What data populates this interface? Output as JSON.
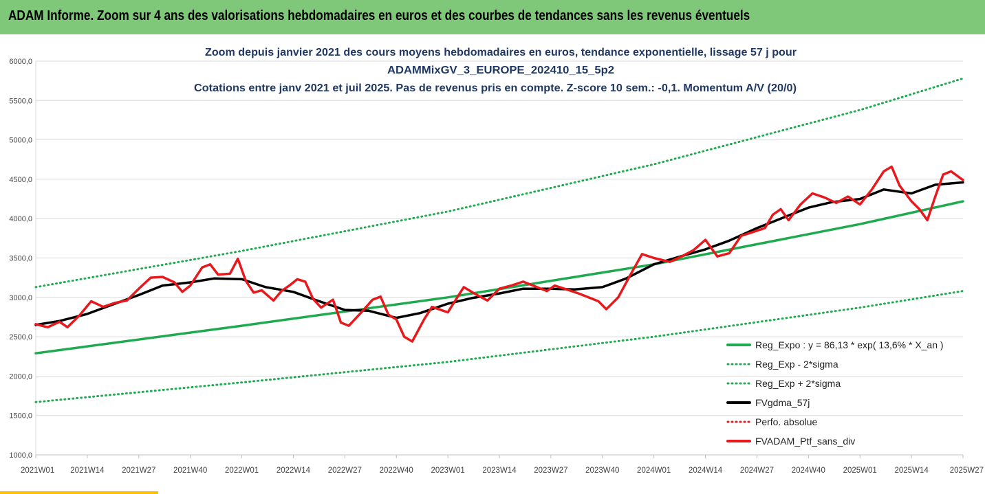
{
  "banner": {
    "title": "ADAM Informe. Zoom sur 4 ans des valorisations hebdomadaires en euros et des courbes de tendances sans les revenus éventuels"
  },
  "chart_data": {
    "type": "line",
    "title_lines": [
      "Zoom depuis janvier 2021 des cours moyens hebdomadaires  en euros, tendance exponentielle, lissage 57 j pour",
      "ADAMMixGV_3_EUROPE_202410_15_5p2",
      "Cotations entre janv 2021 et juil 2025. Pas de revenus pris en compte. Z-score 10 sem.: -0,1. Momentum A/V (20/0)"
    ],
    "ylim": [
      1000,
      6000
    ],
    "y_ticks": [
      "1000,0",
      "1500,0",
      "2000,0",
      "2500,0",
      "3000,0",
      "3500,0",
      "4000,0",
      "4500,0",
      "5000,0",
      "5500,0",
      "6000,0"
    ],
    "x_week_range": [
      0,
      234
    ],
    "x_ticks": [
      {
        "label": "2021W01",
        "week": 0
      },
      {
        "label": "2021W14",
        "week": 13
      },
      {
        "label": "2021W27",
        "week": 26
      },
      {
        "label": "2021W40",
        "week": 39
      },
      {
        "label": "2022W01",
        "week": 52
      },
      {
        "label": "2022W14",
        "week": 65
      },
      {
        "label": "2022W27",
        "week": 78
      },
      {
        "label": "2022W40",
        "week": 91
      },
      {
        "label": "2023W01",
        "week": 104
      },
      {
        "label": "2023W14",
        "week": 117
      },
      {
        "label": "2023W27",
        "week": 130
      },
      {
        "label": "2023W40",
        "week": 143
      },
      {
        "label": "2024W01",
        "week": 156
      },
      {
        "label": "2024W14",
        "week": 169
      },
      {
        "label": "2024W27",
        "week": 182
      },
      {
        "label": "2024W40",
        "week": 195
      },
      {
        "label": "2025W01",
        "week": 208
      },
      {
        "label": "2025W14",
        "week": 221
      },
      {
        "label": "2025W27",
        "week": 234
      }
    ],
    "grid": "horizontal",
    "legend_position": "bottom-right",
    "series": [
      {
        "name": "Reg_Expo : y = 86,13 * exp( 13,6% *  X_an )",
        "color": "#1faa4f",
        "style": "solid",
        "points": [
          [
            0,
            2290
          ],
          [
            52,
            2640
          ],
          [
            104,
            3000
          ],
          [
            156,
            3420
          ],
          [
            208,
            3930
          ],
          [
            234,
            4220
          ]
        ]
      },
      {
        "name": "Reg_Exp - 2*sigma",
        "color": "#1faa4f",
        "style": "dotted",
        "points": [
          [
            0,
            1670
          ],
          [
            52,
            1920
          ],
          [
            104,
            2180
          ],
          [
            156,
            2500
          ],
          [
            208,
            2870
          ],
          [
            234,
            3080
          ]
        ]
      },
      {
        "name": "Reg_Exp + 2*sigma",
        "color": "#1faa4f",
        "style": "dotted",
        "points": [
          [
            0,
            3130
          ],
          [
            52,
            3590
          ],
          [
            104,
            4090
          ],
          [
            156,
            4690
          ],
          [
            208,
            5380
          ],
          [
            234,
            5780
          ]
        ]
      },
      {
        "name": "FVgdma_57j",
        "color": "#000000",
        "style": "solid",
        "points": [
          [
            0,
            2650
          ],
          [
            6,
            2700
          ],
          [
            13,
            2790
          ],
          [
            20,
            2920
          ],
          [
            26,
            3030
          ],
          [
            32,
            3150
          ],
          [
            39,
            3190
          ],
          [
            45,
            3240
          ],
          [
            52,
            3230
          ],
          [
            58,
            3130
          ],
          [
            65,
            3070
          ],
          [
            71,
            2960
          ],
          [
            78,
            2840
          ],
          [
            84,
            2830
          ],
          [
            91,
            2740
          ],
          [
            97,
            2800
          ],
          [
            104,
            2920
          ],
          [
            110,
            2990
          ],
          [
            117,
            3050
          ],
          [
            123,
            3110
          ],
          [
            130,
            3110
          ],
          [
            136,
            3100
          ],
          [
            143,
            3130
          ],
          [
            149,
            3240
          ],
          [
            156,
            3420
          ],
          [
            162,
            3510
          ],
          [
            169,
            3610
          ],
          [
            175,
            3720
          ],
          [
            182,
            3880
          ],
          [
            188,
            4000
          ],
          [
            195,
            4140
          ],
          [
            201,
            4210
          ],
          [
            208,
            4250
          ],
          [
            214,
            4370
          ],
          [
            221,
            4320
          ],
          [
            227,
            4430
          ],
          [
            234,
            4460
          ]
        ]
      },
      {
        "name": "Perfo. absolue",
        "color": "#e8191d",
        "style": "dotted",
        "points": []
      },
      {
        "name": "FVADAM_Ptf_sans_div",
        "color": "#e8191d",
        "style": "solid",
        "points": [
          [
            0,
            2660
          ],
          [
            3,
            2620
          ],
          [
            6,
            2690
          ],
          [
            8,
            2620
          ],
          [
            11,
            2770
          ],
          [
            14,
            2950
          ],
          [
            17,
            2880
          ],
          [
            20,
            2930
          ],
          [
            23,
            2960
          ],
          [
            26,
            3110
          ],
          [
            29,
            3250
          ],
          [
            32,
            3260
          ],
          [
            35,
            3190
          ],
          [
            37,
            3070
          ],
          [
            39,
            3150
          ],
          [
            42,
            3380
          ],
          [
            44,
            3420
          ],
          [
            46,
            3290
          ],
          [
            49,
            3300
          ],
          [
            51,
            3490
          ],
          [
            53,
            3210
          ],
          [
            55,
            3060
          ],
          [
            57,
            3090
          ],
          [
            60,
            2960
          ],
          [
            62,
            3080
          ],
          [
            64,
            3150
          ],
          [
            66,
            3230
          ],
          [
            68,
            3200
          ],
          [
            70,
            2980
          ],
          [
            72,
            2870
          ],
          [
            75,
            2970
          ],
          [
            77,
            2680
          ],
          [
            79,
            2640
          ],
          [
            82,
            2800
          ],
          [
            85,
            2970
          ],
          [
            87,
            3010
          ],
          [
            89,
            2780
          ],
          [
            91,
            2720
          ],
          [
            93,
            2500
          ],
          [
            95,
            2440
          ],
          [
            98,
            2720
          ],
          [
            100,
            2880
          ],
          [
            104,
            2810
          ],
          [
            108,
            3130
          ],
          [
            111,
            3040
          ],
          [
            114,
            2960
          ],
          [
            117,
            3110
          ],
          [
            120,
            3150
          ],
          [
            123,
            3200
          ],
          [
            126,
            3140
          ],
          [
            129,
            3080
          ],
          [
            131,
            3150
          ],
          [
            134,
            3100
          ],
          [
            137,
            3050
          ],
          [
            140,
            2990
          ],
          [
            142,
            2950
          ],
          [
            144,
            2850
          ],
          [
            147,
            3000
          ],
          [
            150,
            3280
          ],
          [
            153,
            3550
          ],
          [
            156,
            3500
          ],
          [
            160,
            3450
          ],
          [
            163,
            3520
          ],
          [
            166,
            3600
          ],
          [
            169,
            3730
          ],
          [
            172,
            3520
          ],
          [
            175,
            3560
          ],
          [
            178,
            3780
          ],
          [
            181,
            3830
          ],
          [
            184,
            3880
          ],
          [
            186,
            4050
          ],
          [
            188,
            4120
          ],
          [
            190,
            3980
          ],
          [
            193,
            4180
          ],
          [
            196,
            4320
          ],
          [
            199,
            4270
          ],
          [
            202,
            4200
          ],
          [
            205,
            4280
          ],
          [
            208,
            4180
          ],
          [
            211,
            4370
          ],
          [
            214,
            4600
          ],
          [
            216,
            4660
          ],
          [
            218,
            4420
          ],
          [
            221,
            4220
          ],
          [
            223,
            4120
          ],
          [
            225,
            3980
          ],
          [
            227,
            4280
          ],
          [
            229,
            4560
          ],
          [
            231,
            4600
          ],
          [
            234,
            4490
          ]
        ]
      }
    ]
  }
}
